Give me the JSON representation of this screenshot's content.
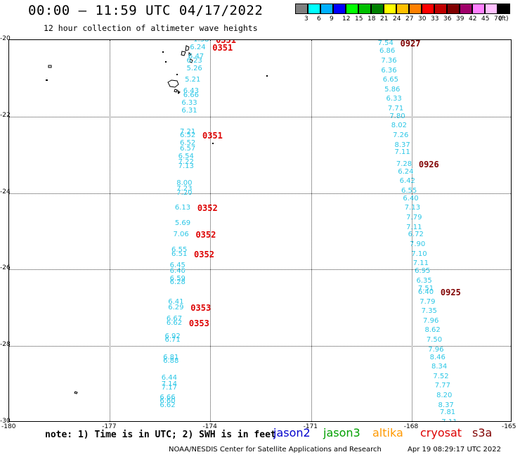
{
  "title": "00:00 – 11:59 UTC 04/17/2022",
  "subtitle": "12 hour collection of altimeter wave heights",
  "colorbar": {
    "colors": [
      "#7f7f7f",
      "#00ffff",
      "#00b0ff",
      "#0000ff",
      "#00ff00",
      "#00c000",
      "#008000",
      "#ffff00",
      "#ffc000",
      "#ff8000",
      "#ff0000",
      "#c00000",
      "#800000",
      "#a0006a",
      "#ff80ff",
      "#ffc0ff",
      "#000000"
    ],
    "labels": [
      "3",
      "6",
      "9",
      "12",
      "15",
      "18",
      "21",
      "24",
      "27",
      "30",
      "33",
      "36",
      "39",
      "42",
      "45",
      "70",
      "(ft)"
    ]
  },
  "map": {
    "lon_range": [
      -180,
      -165
    ],
    "lat_range": [
      -30,
      -20
    ],
    "lon_ticks": [
      "-180",
      "-177",
      "-174",
      "-171",
      "-168",
      "-165"
    ],
    "lat_ticks": [
      "-20",
      "-22",
      "-24",
      "-26",
      "-28",
      "-30"
    ]
  },
  "tracks": [
    {
      "time_labels": [
        {
          "text": "0351",
          "lat": -20.0
        },
        {
          "text": "0351",
          "lat": -20.2
        },
        {
          "text": "0351",
          "lat": -22.5
        },
        {
          "text": "0352",
          "lat": -24.4
        },
        {
          "text": "0352",
          "lat": -25.1
        },
        {
          "text": "0352",
          "lat": -25.6
        },
        {
          "text": "0353",
          "lat": -27.0
        },
        {
          "text": "0353",
          "lat": -27.4
        }
      ],
      "wave_heights": [
        {
          "v": "1.38",
          "lat": -20.0,
          "lon": -174.3
        },
        {
          "v": "6.24",
          "lat": -20.2,
          "lon": -174.4
        },
        {
          "v": "6.47",
          "lat": -20.45,
          "lon": -174.45
        },
        {
          "v": "6.23",
          "lat": -20.55,
          "lon": -174.5
        },
        {
          "v": "5.26",
          "lat": -20.75,
          "lon": -174.5
        },
        {
          "v": "5.21",
          "lat": -21.05,
          "lon": -174.55
        },
        {
          "v": "6.43",
          "lat": -21.35,
          "lon": -174.6
        },
        {
          "v": "6.66",
          "lat": -21.45,
          "lon": -174.6
        },
        {
          "v": "6.33",
          "lat": -21.65,
          "lon": -174.65
        },
        {
          "v": "6.31",
          "lat": -21.85,
          "lon": -174.65
        },
        {
          "v": "7.21",
          "lat": -22.4,
          "lon": -174.7
        },
        {
          "v": "6.52",
          "lat": -22.5,
          "lon": -174.7
        },
        {
          "v": "6.52",
          "lat": -22.7,
          "lon": -174.7
        },
        {
          "v": "6.57",
          "lat": -22.85,
          "lon": -174.7
        },
        {
          "v": "6.54",
          "lat": -23.05,
          "lon": -174.75
        },
        {
          "v": "7.22",
          "lat": -23.2,
          "lon": -174.75
        },
        {
          "v": "7.13",
          "lat": -23.3,
          "lon": -174.75
        },
        {
          "v": "8.00",
          "lat": -23.75,
          "lon": -174.8
        },
        {
          "v": "7.23",
          "lat": -23.9,
          "lon": -174.8
        },
        {
          "v": "7.20",
          "lat": -24.0,
          "lon": -174.8
        },
        {
          "v": "6.13",
          "lat": -24.4,
          "lon": -174.85
        },
        {
          "v": "5.69",
          "lat": -24.8,
          "lon": -174.85
        },
        {
          "v": "7.06",
          "lat": -25.1,
          "lon": -174.9
        },
        {
          "v": "6.55",
          "lat": -25.5,
          "lon": -174.95
        },
        {
          "v": "6.51",
          "lat": -25.6,
          "lon": -174.95
        },
        {
          "v": "6.45",
          "lat": -25.9,
          "lon": -175.0
        },
        {
          "v": "6.40",
          "lat": -26.05,
          "lon": -175.0
        },
        {
          "v": "6.59",
          "lat": -26.25,
          "lon": -175.0
        },
        {
          "v": "6.28",
          "lat": -26.35,
          "lon": -175.0
        },
        {
          "v": "6.41",
          "lat": -26.85,
          "lon": -175.05
        },
        {
          "v": "6.29",
          "lat": -27.0,
          "lon": -175.05
        },
        {
          "v": "6.67",
          "lat": -27.3,
          "lon": -175.1
        },
        {
          "v": "6.62",
          "lat": -27.4,
          "lon": -175.1
        },
        {
          "v": "6.92",
          "lat": -27.75,
          "lon": -175.15
        },
        {
          "v": "6.71",
          "lat": -27.85,
          "lon": -175.15
        },
        {
          "v": "6.81",
          "lat": -28.3,
          "lon": -175.2
        },
        {
          "v": "6.88",
          "lat": -28.4,
          "lon": -175.2
        },
        {
          "v": "6.44",
          "lat": -28.85,
          "lon": -175.25
        },
        {
          "v": "7.14",
          "lat": -29.0,
          "lon": -175.25
        },
        {
          "v": "7.17",
          "lat": -29.1,
          "lon": -175.25
        },
        {
          "v": "6.66",
          "lat": -29.35,
          "lon": -175.3
        },
        {
          "v": "6.60",
          "lat": -29.45,
          "lon": -175.3
        },
        {
          "v": "6.62",
          "lat": -29.55,
          "lon": -175.3
        }
      ]
    },
    {
      "time_labels": [
        {
          "text": "0927",
          "lat": -20.1
        },
        {
          "text": "0926",
          "lat": -23.25
        },
        {
          "text": "0925",
          "lat": -26.6
        }
      ],
      "wave_heights": [
        {
          "v": "7.54",
          "lat": -20.1,
          "lon": -168.8
        },
        {
          "v": "6.86",
          "lat": -20.3,
          "lon": -168.75
        },
        {
          "v": "7.36",
          "lat": -20.55,
          "lon": -168.7
        },
        {
          "v": "6.36",
          "lat": -20.8,
          "lon": -168.7
        },
        {
          "v": "6.65",
          "lat": -21.05,
          "lon": -168.65
        },
        {
          "v": "5.86",
          "lat": -21.3,
          "lon": -168.6
        },
        {
          "v": "6.33",
          "lat": -21.55,
          "lon": -168.55
        },
        {
          "v": "7.71",
          "lat": -21.8,
          "lon": -168.5
        },
        {
          "v": "7.80",
          "lat": -22.0,
          "lon": -168.45
        },
        {
          "v": "8.02",
          "lat": -22.25,
          "lon": -168.4
        },
        {
          "v": "7.26",
          "lat": -22.5,
          "lon": -168.35
        },
        {
          "v": "8.37",
          "lat": -22.75,
          "lon": -168.3
        },
        {
          "v": "7.11",
          "lat": -22.95,
          "lon": -168.3
        },
        {
          "v": "7.28",
          "lat": -23.25,
          "lon": -168.25
        },
        {
          "v": "6.24",
          "lat": -23.45,
          "lon": -168.2
        },
        {
          "v": "6.42",
          "lat": -23.7,
          "lon": -168.15
        },
        {
          "v": "6.55",
          "lat": -23.95,
          "lon": -168.1
        },
        {
          "v": "6.40",
          "lat": -24.15,
          "lon": -168.05
        },
        {
          "v": "7.13",
          "lat": -24.4,
          "lon": -168.0
        },
        {
          "v": "7.79",
          "lat": -24.65,
          "lon": -167.95
        },
        {
          "v": "7.11",
          "lat": -24.9,
          "lon": -167.95
        },
        {
          "v": "6.72",
          "lat": -25.1,
          "lon": -167.9
        },
        {
          "v": "7.90",
          "lat": -25.35,
          "lon": -167.85
        },
        {
          "v": "7.10",
          "lat": -25.6,
          "lon": -167.8
        },
        {
          "v": "7.11",
          "lat": -25.85,
          "lon": -167.75
        },
        {
          "v": "6.95",
          "lat": -26.05,
          "lon": -167.7
        },
        {
          "v": "6.35",
          "lat": -26.3,
          "lon": -167.65
        },
        {
          "v": "7.51",
          "lat": -26.5,
          "lon": -167.6
        },
        {
          "v": "6.40",
          "lat": -26.6,
          "lon": -167.6
        },
        {
          "v": "7.79",
          "lat": -26.85,
          "lon": -167.55
        },
        {
          "v": "7.35",
          "lat": -27.1,
          "lon": -167.5
        },
        {
          "v": "7.96",
          "lat": -27.35,
          "lon": -167.45
        },
        {
          "v": "8.62",
          "lat": -27.6,
          "lon": -167.4
        },
        {
          "v": "7.50",
          "lat": -27.85,
          "lon": -167.35
        },
        {
          "v": "7.96",
          "lat": -28.1,
          "lon": -167.3
        },
        {
          "v": "8.46",
          "lat": -28.3,
          "lon": -167.25
        },
        {
          "v": "8.34",
          "lat": -28.55,
          "lon": -167.2
        },
        {
          "v": "7.52",
          "lat": -28.8,
          "lon": -167.15
        },
        {
          "v": "7.77",
          "lat": -29.05,
          "lon": -167.1
        },
        {
          "v": "8.20",
          "lat": -29.3,
          "lon": -167.05
        },
        {
          "v": "8.37",
          "lat": -29.55,
          "lon": -167.0
        },
        {
          "v": "7.81",
          "lat": -29.75,
          "lon": -166.95
        },
        {
          "v": "7.11",
          "lat": -30.0,
          "lon": -166.9
        }
      ]
    }
  ],
  "note": "note: 1) Time is in UTC; 2) SWH is in feet",
  "satellites": [
    {
      "name": "jason2",
      "color": "#0000cc"
    },
    {
      "name": "jason3",
      "color": "#00a000"
    },
    {
      "name": "altika",
      "color": "#ff9900"
    },
    {
      "name": "cryosat",
      "color": "#dd0000"
    },
    {
      "name": "s3a",
      "color": "#800000"
    }
  ],
  "credit": "NOAA/NESDIS Center for Satellite Applications and Research",
  "timestamp": "Apr 19 08:29:17 UTC 2022"
}
